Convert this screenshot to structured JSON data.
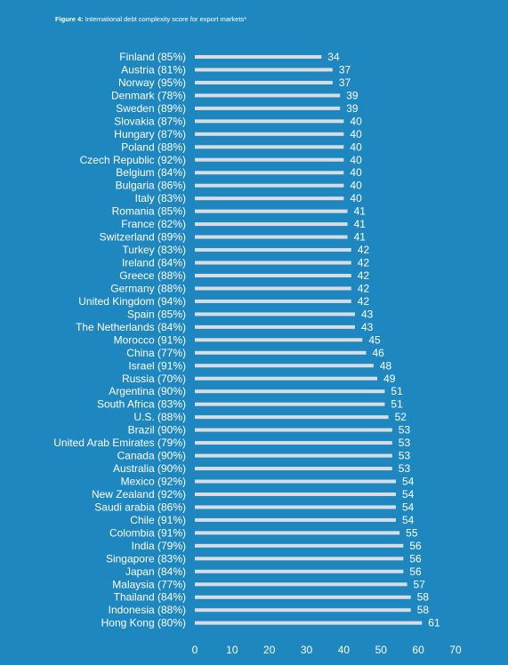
{
  "figure": {
    "label": "Figure 4:",
    "title": " International debt complexity score for export markets*"
  },
  "colors": {
    "background": "#1f87bf",
    "bar": "#d9dde1",
    "text": "#ffffff"
  },
  "chart_data": {
    "type": "bar",
    "orientation": "horizontal",
    "xlim": [
      0,
      70
    ],
    "x_ticks": [
      "0",
      "10",
      "20",
      "30",
      "40",
      "50",
      "60",
      "70"
    ],
    "grid": false,
    "categories": [
      "Finland (85%)",
      "Austria (81%)",
      "Norway (95%)",
      "Denmark (78%)",
      "Sweden (89%)",
      "Slovakia (87%)",
      "Hungary (87%)",
      "Poland (88%)",
      "Czech Republic (92%)",
      "Belgium (84%)",
      "Bulgaria (86%)",
      "Italy (83%)",
      "Romania (85%)",
      "France (82%)",
      "Switzerland (89%)",
      "Turkey (83%)",
      "Ireland (84%)",
      "Greece (88%)",
      "Germany (88%)",
      "United Kingdom (94%)",
      "Spain (85%)",
      "The Netherlands (84%)",
      "Morocco (91%)",
      "China (77%)",
      "Israel (91%)",
      "Russia (70%)",
      "Argentina (90%)",
      "South Africa (83%)",
      "U.S. (88%)",
      "Brazil (90%)",
      "United Arab Emirates (79%)",
      "Canada (90%)",
      "Australia (90%)",
      "Mexico (92%)",
      "New Zealand (92%)",
      "Saudi arabia (86%)",
      "Chile (91%)",
      "Colombia (91%)",
      "India (79%)",
      "Singapore (83%)",
      "Japan (84%)",
      "Malaysia (77%)",
      "Thailand (84%)",
      "Indonesia (88%)",
      "Hong Kong (80%)"
    ],
    "values": [
      34,
      37,
      37,
      39,
      39,
      40,
      40,
      40,
      40,
      40,
      40,
      40,
      41,
      41,
      41,
      42,
      42,
      42,
      42,
      42,
      43,
      43,
      45,
      46,
      48,
      49,
      51,
      51,
      52,
      53,
      53,
      53,
      53,
      54,
      54,
      54,
      54,
      55,
      56,
      56,
      56,
      57,
      58,
      58,
      61
    ]
  }
}
